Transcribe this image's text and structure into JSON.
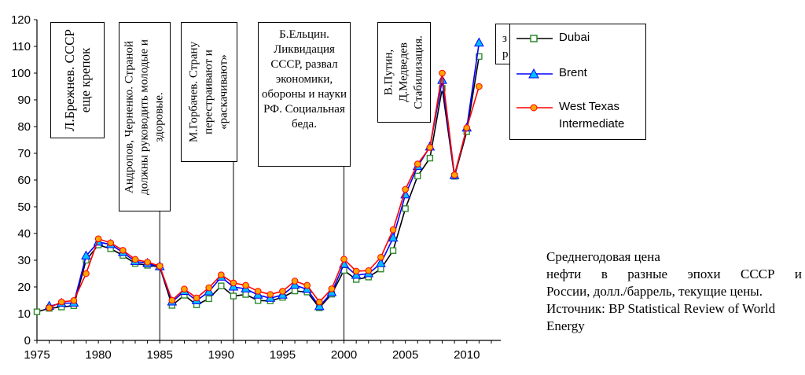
{
  "chart_data": {
    "type": "line",
    "xlim": [
      1975,
      2012
    ],
    "ylim": [
      0,
      120
    ],
    "x_ticks": [
      "1975",
      "1980",
      "1985",
      "1990",
      "1995",
      "2000",
      "2005",
      "2010"
    ],
    "y_ticks": [
      "0",
      "10",
      "20",
      "30",
      "40",
      "50",
      "60",
      "70",
      "80",
      "90",
      "100",
      "110",
      "120"
    ],
    "grid": false,
    "legend_position": "top-right",
    "x": [
      1975,
      1976,
      1977,
      1978,
      1979,
      1980,
      1981,
      1982,
      1983,
      1984,
      1985,
      1986,
      1987,
      1988,
      1989,
      1990,
      1991,
      1992,
      1993,
      1994,
      1995,
      1996,
      1997,
      1998,
      1999,
      2000,
      2001,
      2002,
      2003,
      2004,
      2005,
      2006,
      2007,
      2008,
      2009,
      2010,
      2011
    ],
    "series": [
      {
        "name": "Dubai",
        "color": "#000000",
        "marker": "square",
        "marker_color": "#2e8b2e",
        "values": [
          10.7,
          12.0,
          12.5,
          13.0,
          30.0,
          35.7,
          34.3,
          31.8,
          28.8,
          28.1,
          27.5,
          13.1,
          16.9,
          13.3,
          15.6,
          20.4,
          16.6,
          17.2,
          14.9,
          14.8,
          16.1,
          18.5,
          18.1,
          12.2,
          17.3,
          26.2,
          22.8,
          23.7,
          26.7,
          33.6,
          49.3,
          61.5,
          68.2,
          94.3,
          61.4,
          78.1,
          106.2
        ]
      },
      {
        "name": "Brent",
        "color": "#0000ff",
        "marker": "triangle",
        "marker_color": "#00bfff",
        "values": [
          null,
          12.8,
          13.9,
          14.0,
          31.6,
          36.8,
          35.9,
          32.9,
          29.6,
          28.8,
          27.6,
          14.4,
          18.4,
          14.9,
          18.2,
          23.7,
          20.0,
          19.3,
          17.0,
          15.8,
          17.0,
          20.7,
          19.1,
          12.7,
          17.9,
          28.5,
          24.4,
          25.0,
          28.8,
          38.3,
          54.5,
          65.1,
          72.4,
          97.3,
          61.7,
          79.5,
          111.3
        ]
      },
      {
        "name": "West Texas Intermediate",
        "color": "#ff0000",
        "marker": "circle",
        "marker_color": "#ffa500",
        "values": [
          null,
          12.2,
          14.4,
          14.9,
          25.0,
          38.0,
          36.5,
          33.7,
          30.3,
          29.3,
          27.8,
          15.0,
          19.2,
          15.9,
          19.7,
          24.5,
          21.5,
          20.6,
          18.4,
          17.2,
          18.4,
          22.2,
          20.6,
          14.4,
          19.3,
          30.4,
          25.9,
          26.1,
          31.1,
          41.4,
          56.5,
          66.0,
          72.2,
          100.0,
          61.9,
          79.5,
          95.0
        ]
      }
    ]
  },
  "annotations": [
    {
      "id": "brezhnev",
      "text": "Л.Брежнев. СССР еще крепок"
    },
    {
      "id": "andropov",
      "text": "Андропов, Черненко. Страной должны руководить молодые и здоровые."
    },
    {
      "id": "gorbachev",
      "text": "М.Горбачев. Страну перестраивают и «раскачивают»"
    },
    {
      "id": "yeltsin",
      "text": "Б.Ельцин. Ликвидация СССР, развал экономики, обороны и науки РФ. Социальная беда."
    },
    {
      "id": "putin",
      "text": "В.Путин, Д.Медведев Стабилизация."
    }
  ],
  "hidden_box_fragment": "з\nр",
  "caption": {
    "line1": "Среднегодовая цена",
    "line2": "нефти в разные эпохи СССР и",
    "line3": "России, долл./баррель, текущие цены. Источник: BP Statistical Review of World Energy"
  }
}
